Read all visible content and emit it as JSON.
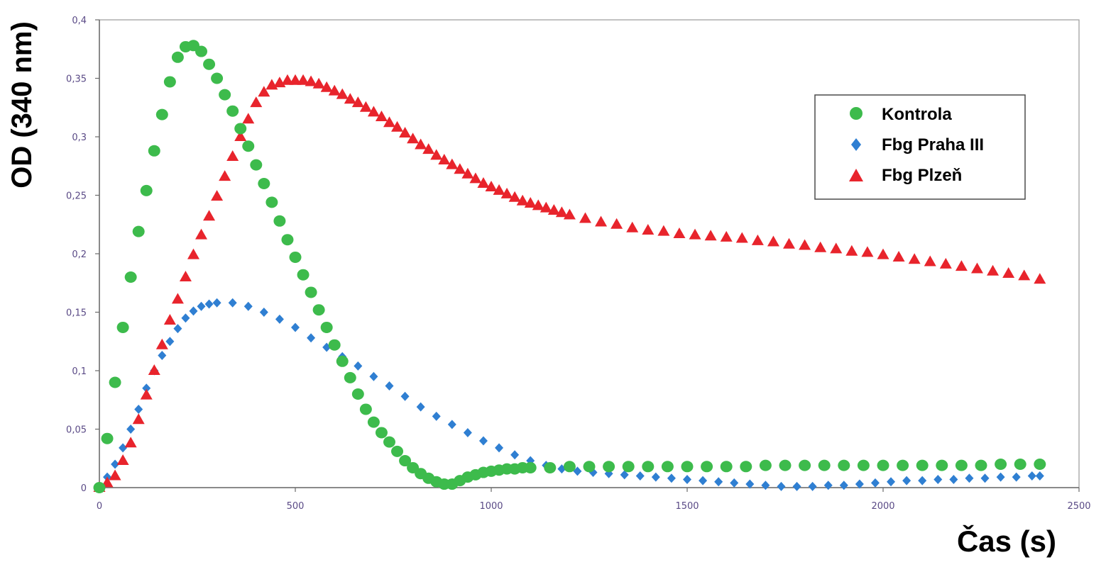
{
  "chart_data": {
    "type": "scatter",
    "title": "",
    "xlabel": "Čas (s)",
    "ylabel": "OD (340 nm)",
    "xlim": [
      0,
      2500
    ],
    "ylim": [
      0,
      0.4
    ],
    "x_ticks": [
      0,
      500,
      1000,
      1500,
      2000,
      2500
    ],
    "x_tick_labels": [
      "0",
      "500",
      "1000",
      "1500",
      "2000",
      "2500"
    ],
    "y_ticks": [
      0,
      0.05,
      0.1,
      0.15,
      0.2,
      0.25,
      0.3,
      0.35,
      0.4
    ],
    "y_tick_labels": [
      "0",
      "0,05",
      "0,1",
      "0,15",
      "0,2",
      "0,25",
      "0,3",
      "0,35",
      "0,4"
    ],
    "grid": false,
    "legend_position": "right",
    "series": [
      {
        "name": "Kontrola",
        "color": "#3dbb4c",
        "marker": "circle",
        "points": [
          [
            0,
            0.0
          ],
          [
            20,
            0.042
          ],
          [
            40,
            0.09
          ],
          [
            60,
            0.137
          ],
          [
            80,
            0.18
          ],
          [
            100,
            0.219
          ],
          [
            120,
            0.254
          ],
          [
            140,
            0.288
          ],
          [
            160,
            0.319
          ],
          [
            180,
            0.347
          ],
          [
            200,
            0.368
          ],
          [
            220,
            0.377
          ],
          [
            240,
            0.378
          ],
          [
            260,
            0.373
          ],
          [
            280,
            0.362
          ],
          [
            300,
            0.35
          ],
          [
            320,
            0.336
          ],
          [
            340,
            0.322
          ],
          [
            360,
            0.307
          ],
          [
            380,
            0.292
          ],
          [
            400,
            0.276
          ],
          [
            420,
            0.26
          ],
          [
            440,
            0.244
          ],
          [
            460,
            0.228
          ],
          [
            480,
            0.212
          ],
          [
            500,
            0.197
          ],
          [
            520,
            0.182
          ],
          [
            540,
            0.167
          ],
          [
            560,
            0.152
          ],
          [
            580,
            0.137
          ],
          [
            600,
            0.122
          ],
          [
            620,
            0.108
          ],
          [
            640,
            0.094
          ],
          [
            660,
            0.08
          ],
          [
            680,
            0.067
          ],
          [
            700,
            0.056
          ],
          [
            720,
            0.047
          ],
          [
            740,
            0.039
          ],
          [
            760,
            0.031
          ],
          [
            780,
            0.023
          ],
          [
            800,
            0.017
          ],
          [
            820,
            0.012
          ],
          [
            840,
            0.008
          ],
          [
            860,
            0.005
          ],
          [
            880,
            0.003
          ],
          [
            900,
            0.003
          ],
          [
            920,
            0.006
          ],
          [
            940,
            0.009
          ],
          [
            960,
            0.011
          ],
          [
            980,
            0.013
          ],
          [
            1000,
            0.014
          ],
          [
            1020,
            0.015
          ],
          [
            1040,
            0.016
          ],
          [
            1060,
            0.016
          ],
          [
            1080,
            0.017
          ],
          [
            1100,
            0.017
          ],
          [
            1150,
            0.017
          ],
          [
            1200,
            0.018
          ],
          [
            1250,
            0.018
          ],
          [
            1300,
            0.018
          ],
          [
            1350,
            0.018
          ],
          [
            1400,
            0.018
          ],
          [
            1450,
            0.018
          ],
          [
            1500,
            0.018
          ],
          [
            1550,
            0.018
          ],
          [
            1600,
            0.018
          ],
          [
            1650,
            0.018
          ],
          [
            1700,
            0.019
          ],
          [
            1750,
            0.019
          ],
          [
            1800,
            0.019
          ],
          [
            1850,
            0.019
          ],
          [
            1900,
            0.019
          ],
          [
            1950,
            0.019
          ],
          [
            2000,
            0.019
          ],
          [
            2050,
            0.019
          ],
          [
            2100,
            0.019
          ],
          [
            2150,
            0.019
          ],
          [
            2200,
            0.019
          ],
          [
            2250,
            0.019
          ],
          [
            2300,
            0.02
          ],
          [
            2350,
            0.02
          ],
          [
            2400,
            0.02
          ]
        ]
      },
      {
        "name": "Fbg Praha III",
        "color": "#2f7fd2",
        "marker": "diamond",
        "points": [
          [
            0,
            0.0
          ],
          [
            20,
            0.009
          ],
          [
            40,
            0.02
          ],
          [
            60,
            0.034
          ],
          [
            80,
            0.05
          ],
          [
            100,
            0.067
          ],
          [
            120,
            0.085
          ],
          [
            140,
            0.1
          ],
          [
            160,
            0.113
          ],
          [
            180,
            0.125
          ],
          [
            200,
            0.136
          ],
          [
            220,
            0.145
          ],
          [
            240,
            0.151
          ],
          [
            260,
            0.155
          ],
          [
            280,
            0.157
          ],
          [
            300,
            0.158
          ],
          [
            340,
            0.158
          ],
          [
            380,
            0.155
          ],
          [
            420,
            0.15
          ],
          [
            460,
            0.144
          ],
          [
            500,
            0.137
          ],
          [
            540,
            0.128
          ],
          [
            580,
            0.12
          ],
          [
            620,
            0.112
          ],
          [
            660,
            0.104
          ],
          [
            700,
            0.095
          ],
          [
            740,
            0.087
          ],
          [
            780,
            0.078
          ],
          [
            820,
            0.069
          ],
          [
            860,
            0.061
          ],
          [
            900,
            0.054
          ],
          [
            940,
            0.047
          ],
          [
            980,
            0.04
          ],
          [
            1020,
            0.034
          ],
          [
            1060,
            0.028
          ],
          [
            1100,
            0.023
          ],
          [
            1140,
            0.019
          ],
          [
            1180,
            0.016
          ],
          [
            1220,
            0.014
          ],
          [
            1260,
            0.013
          ],
          [
            1300,
            0.012
          ],
          [
            1340,
            0.011
          ],
          [
            1380,
            0.01
          ],
          [
            1420,
            0.009
          ],
          [
            1460,
            0.008
          ],
          [
            1500,
            0.007
          ],
          [
            1540,
            0.006
          ],
          [
            1580,
            0.005
          ],
          [
            1620,
            0.004
          ],
          [
            1660,
            0.003
          ],
          [
            1700,
            0.002
          ],
          [
            1740,
            0.001
          ],
          [
            1780,
            0.001
          ],
          [
            1820,
            0.001
          ],
          [
            1860,
            0.002
          ],
          [
            1900,
            0.002
          ],
          [
            1940,
            0.003
          ],
          [
            1980,
            0.004
          ],
          [
            2020,
            0.005
          ],
          [
            2060,
            0.006
          ],
          [
            2100,
            0.006
          ],
          [
            2140,
            0.007
          ],
          [
            2180,
            0.007
          ],
          [
            2220,
            0.008
          ],
          [
            2260,
            0.008
          ],
          [
            2300,
            0.009
          ],
          [
            2340,
            0.009
          ],
          [
            2380,
            0.01
          ],
          [
            2400,
            0.01
          ]
        ]
      },
      {
        "name": "Fbg Plzeň",
        "color": "#e8242c",
        "marker": "triangle",
        "points": [
          [
            0,
            0.0
          ],
          [
            20,
            0.004
          ],
          [
            40,
            0.01
          ],
          [
            60,
            0.023
          ],
          [
            80,
            0.038
          ],
          [
            100,
            0.058
          ],
          [
            120,
            0.079
          ],
          [
            140,
            0.1
          ],
          [
            160,
            0.122
          ],
          [
            180,
            0.143
          ],
          [
            200,
            0.161
          ],
          [
            220,
            0.18
          ],
          [
            240,
            0.199
          ],
          [
            260,
            0.216
          ],
          [
            280,
            0.232
          ],
          [
            300,
            0.249
          ],
          [
            320,
            0.266
          ],
          [
            340,
            0.283
          ],
          [
            360,
            0.3
          ],
          [
            380,
            0.315
          ],
          [
            400,
            0.329
          ],
          [
            420,
            0.338
          ],
          [
            440,
            0.344
          ],
          [
            460,
            0.346
          ],
          [
            480,
            0.348
          ],
          [
            500,
            0.348
          ],
          [
            520,
            0.348
          ],
          [
            540,
            0.347
          ],
          [
            560,
            0.345
          ],
          [
            580,
            0.342
          ],
          [
            600,
            0.339
          ],
          [
            620,
            0.336
          ],
          [
            640,
            0.332
          ],
          [
            660,
            0.329
          ],
          [
            680,
            0.325
          ],
          [
            700,
            0.321
          ],
          [
            720,
            0.317
          ],
          [
            740,
            0.312
          ],
          [
            760,
            0.308
          ],
          [
            780,
            0.303
          ],
          [
            800,
            0.298
          ],
          [
            820,
            0.293
          ],
          [
            840,
            0.289
          ],
          [
            860,
            0.284
          ],
          [
            880,
            0.28
          ],
          [
            900,
            0.276
          ],
          [
            920,
            0.272
          ],
          [
            940,
            0.268
          ],
          [
            960,
            0.264
          ],
          [
            980,
            0.26
          ],
          [
            1000,
            0.257
          ],
          [
            1020,
            0.254
          ],
          [
            1040,
            0.251
          ],
          [
            1060,
            0.248
          ],
          [
            1080,
            0.245
          ],
          [
            1100,
            0.243
          ],
          [
            1120,
            0.241
          ],
          [
            1140,
            0.239
          ],
          [
            1160,
            0.237
          ],
          [
            1180,
            0.235
          ],
          [
            1200,
            0.233
          ],
          [
            1240,
            0.23
          ],
          [
            1280,
            0.227
          ],
          [
            1320,
            0.225
          ],
          [
            1360,
            0.222
          ],
          [
            1400,
            0.22
          ],
          [
            1440,
            0.219
          ],
          [
            1480,
            0.217
          ],
          [
            1520,
            0.216
          ],
          [
            1560,
            0.215
          ],
          [
            1600,
            0.214
          ],
          [
            1640,
            0.213
          ],
          [
            1680,
            0.211
          ],
          [
            1720,
            0.21
          ],
          [
            1760,
            0.208
          ],
          [
            1800,
            0.207
          ],
          [
            1840,
            0.205
          ],
          [
            1880,
            0.204
          ],
          [
            1920,
            0.202
          ],
          [
            1960,
            0.201
          ],
          [
            2000,
            0.199
          ],
          [
            2040,
            0.197
          ],
          [
            2080,
            0.195
          ],
          [
            2120,
            0.193
          ],
          [
            2160,
            0.191
          ],
          [
            2200,
            0.189
          ],
          [
            2240,
            0.187
          ],
          [
            2280,
            0.185
          ],
          [
            2320,
            0.183
          ],
          [
            2360,
            0.181
          ],
          [
            2400,
            0.178
          ]
        ]
      }
    ]
  }
}
